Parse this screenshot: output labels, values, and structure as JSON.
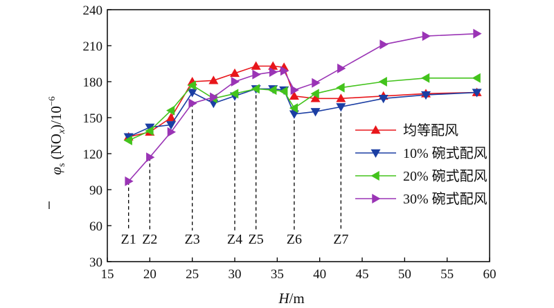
{
  "chart_data": {
    "type": "line",
    "xlabel": {
      "italic": "H",
      "rest": "/m"
    },
    "ylabel": {
      "phi": "φ",
      "sub": "s",
      "paren": " (NO",
      "x": "x",
      "tail": ")/10",
      "exp": "−6"
    },
    "xlim": [
      15,
      60
    ],
    "ylim": [
      30,
      240
    ],
    "xticks": [
      "15",
      "20",
      "25",
      "30",
      "35",
      "40",
      "45",
      "50",
      "55",
      "60"
    ],
    "yticks": [
      "30",
      "60",
      "90",
      "120",
      "150",
      "180",
      "210",
      "240"
    ],
    "zones": [
      {
        "label": "Z1",
        "x": 17.5
      },
      {
        "label": "Z2",
        "x": 20
      },
      {
        "label": "Z3",
        "x": 25
      },
      {
        "label": "Z4",
        "x": 30
      },
      {
        "label": "Z5",
        "x": 32.5
      },
      {
        "label": "Z6",
        "x": 37
      },
      {
        "label": "Z7",
        "x": 42.5
      }
    ],
    "series": [
      {
        "name": "均等配风",
        "color": "#e8161b",
        "marker": "triangle-up",
        "points": [
          [
            17.5,
            134
          ],
          [
            20,
            138
          ],
          [
            22.5,
            150
          ],
          [
            25,
            180
          ],
          [
            27.5,
            181
          ],
          [
            30,
            187
          ],
          [
            32.5,
            193
          ],
          [
            34.5,
            193
          ],
          [
            35.8,
            192
          ],
          [
            37,
            168
          ],
          [
            39.5,
            166
          ],
          [
            42.5,
            166
          ],
          [
            47.5,
            168
          ],
          [
            52.5,
            170
          ],
          [
            58.5,
            171
          ]
        ]
      },
      {
        "name": "10% 碗式配风",
        "color": "#1b3ea3",
        "marker": "triangle-down",
        "points": [
          [
            17.5,
            134
          ],
          [
            20,
            142
          ],
          [
            22.5,
            144
          ],
          [
            25,
            171
          ],
          [
            27.5,
            162
          ],
          [
            30,
            168
          ],
          [
            32.5,
            174
          ],
          [
            34.5,
            174
          ],
          [
            35.8,
            173
          ],
          [
            37,
            153
          ],
          [
            39.5,
            155
          ],
          [
            42.5,
            159
          ],
          [
            47.5,
            166
          ],
          [
            52.5,
            169
          ],
          [
            58.5,
            171
          ]
        ]
      },
      {
        "name": "20% 碗式配风",
        "color": "#43c31c",
        "marker": "triangle-left",
        "points": [
          [
            17.5,
            131
          ],
          [
            20,
            139
          ],
          [
            22.5,
            156
          ],
          [
            25,
            177
          ],
          [
            27.5,
            166
          ],
          [
            30,
            170
          ],
          [
            32.5,
            174
          ],
          [
            34.5,
            173
          ],
          [
            35.8,
            172
          ],
          [
            37,
            158
          ],
          [
            39.5,
            170
          ],
          [
            42.5,
            175
          ],
          [
            47.5,
            180
          ],
          [
            52.5,
            183
          ],
          [
            58.5,
            183
          ]
        ]
      },
      {
        "name": "30% 碗式配风",
        "color": "#9a34b5",
        "marker": "triangle-right",
        "points": [
          [
            17.5,
            97
          ],
          [
            20,
            117
          ],
          [
            22.5,
            138
          ],
          [
            25,
            162
          ],
          [
            27.5,
            167
          ],
          [
            30,
            180
          ],
          [
            32.5,
            186
          ],
          [
            34.5,
            188
          ],
          [
            35.8,
            189
          ],
          [
            37,
            173
          ],
          [
            39.5,
            179
          ],
          [
            42.5,
            191
          ],
          [
            47.5,
            211
          ],
          [
            52.5,
            218
          ],
          [
            58.5,
            220
          ]
        ]
      }
    ],
    "legend_position": "right"
  }
}
